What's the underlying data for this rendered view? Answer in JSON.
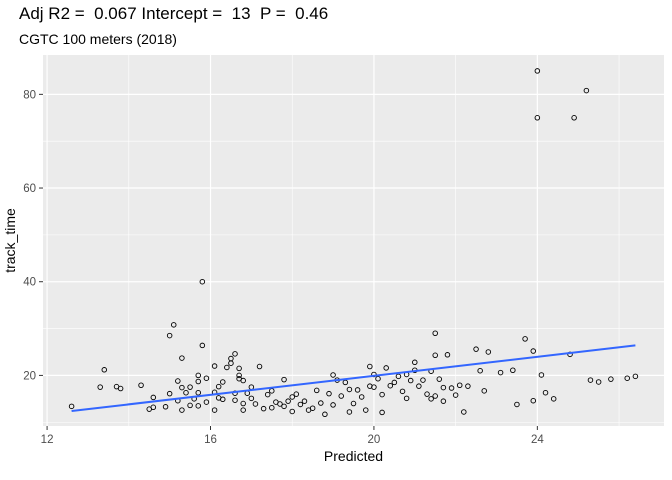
{
  "chart_data": {
    "type": "scatter",
    "title": "Adj R2 =  0.067 Intercept =  13  P =  0.46",
    "subtitle": "CGTC 100 meters (2018)",
    "xlabel": "Predicted",
    "ylabel": "track_time",
    "xlim": [
      11.9,
      27.1
    ],
    "ylim": [
      9.2,
      88.4
    ],
    "x_ticks": [
      12,
      16,
      20,
      24
    ],
    "y_ticks": [
      20,
      40,
      60,
      80
    ],
    "grid": true,
    "background": "#EBEBEB",
    "point_color": "#000000",
    "line_color": "#3366FF",
    "fit_line": {
      "x": [
        12.6,
        26.4
      ],
      "y": [
        12.4,
        26.4
      ]
    },
    "points": [
      [
        12.6,
        13.4
      ],
      [
        13.3,
        17.5
      ],
      [
        13.4,
        21.2
      ],
      [
        13.7,
        17.6
      ],
      [
        13.8,
        17.2
      ],
      [
        14.3,
        17.9
      ],
      [
        14.5,
        12.8
      ],
      [
        14.6,
        13.2
      ],
      [
        14.6,
        15.3
      ],
      [
        14.9,
        13.3
      ],
      [
        15.0,
        16.1
      ],
      [
        15.0,
        28.5
      ],
      [
        15.1,
        30.8
      ],
      [
        15.2,
        18.8
      ],
      [
        15.2,
        14.6
      ],
      [
        15.3,
        17.4
      ],
      [
        15.3,
        12.6
      ],
      [
        15.3,
        23.7
      ],
      [
        15.4,
        16.3
      ],
      [
        15.5,
        13.6
      ],
      [
        15.5,
        17.5
      ],
      [
        15.6,
        15.0
      ],
      [
        15.7,
        18.7
      ],
      [
        15.7,
        20.0
      ],
      [
        15.7,
        13.5
      ],
      [
        15.7,
        16.3
      ],
      [
        15.8,
        40.0
      ],
      [
        15.8,
        26.4
      ],
      [
        15.9,
        19.4
      ],
      [
        15.9,
        14.3
      ],
      [
        16.1,
        16.4
      ],
      [
        16.1,
        12.6
      ],
      [
        16.1,
        22.0
      ],
      [
        16.2,
        15.2
      ],
      [
        16.2,
        17.6
      ],
      [
        16.3,
        18.6
      ],
      [
        16.3,
        14.9
      ],
      [
        16.4,
        21.7
      ],
      [
        16.5,
        22.6
      ],
      [
        16.5,
        23.6
      ],
      [
        16.6,
        16.2
      ],
      [
        16.6,
        14.7
      ],
      [
        16.6,
        24.6
      ],
      [
        16.7,
        21.5
      ],
      [
        16.7,
        20.0
      ],
      [
        16.7,
        19.3
      ],
      [
        16.8,
        18.9
      ],
      [
        16.8,
        14.0
      ],
      [
        16.8,
        12.6
      ],
      [
        16.9,
        16.2
      ],
      [
        17.0,
        17.5
      ],
      [
        17.0,
        15.1
      ],
      [
        17.1,
        13.9
      ],
      [
        17.2,
        21.9
      ],
      [
        17.3,
        12.9
      ],
      [
        17.4,
        15.9
      ],
      [
        17.5,
        16.7
      ],
      [
        17.5,
        13.1
      ],
      [
        17.6,
        14.3
      ],
      [
        17.7,
        13.9
      ],
      [
        17.8,
        19.1
      ],
      [
        17.8,
        13.4
      ],
      [
        17.9,
        14.5
      ],
      [
        18.0,
        15.4
      ],
      [
        18.0,
        12.3
      ],
      [
        18.1,
        16.0
      ],
      [
        18.2,
        13.8
      ],
      [
        18.3,
        14.5
      ],
      [
        18.4,
        12.6
      ],
      [
        18.5,
        13.0
      ],
      [
        18.6,
        16.8
      ],
      [
        18.7,
        14.1
      ],
      [
        18.8,
        11.7
      ],
      [
        18.9,
        16.1
      ],
      [
        19.0,
        13.7
      ],
      [
        19.0,
        20.1
      ],
      [
        19.1,
        19.0
      ],
      [
        19.2,
        15.6
      ],
      [
        19.3,
        18.5
      ],
      [
        19.4,
        17.0
      ],
      [
        19.4,
        12.2
      ],
      [
        19.5,
        14.0
      ],
      [
        19.6,
        16.9
      ],
      [
        19.7,
        15.4
      ],
      [
        19.8,
        12.6
      ],
      [
        19.9,
        21.9
      ],
      [
        19.9,
        17.7
      ],
      [
        20.0,
        20.2
      ],
      [
        20.0,
        17.5
      ],
      [
        20.1,
        19.3
      ],
      [
        20.2,
        15.9
      ],
      [
        20.2,
        12.1
      ],
      [
        20.3,
        21.6
      ],
      [
        20.4,
        17.8
      ],
      [
        20.5,
        18.5
      ],
      [
        20.6,
        19.8
      ],
      [
        20.7,
        16.6
      ],
      [
        20.8,
        15.1
      ],
      [
        20.8,
        20.2
      ],
      [
        20.9,
        18.9
      ],
      [
        21.0,
        21.1
      ],
      [
        21.0,
        22.8
      ],
      [
        21.1,
        17.7
      ],
      [
        21.2,
        19.0
      ],
      [
        21.3,
        16.0
      ],
      [
        21.4,
        15.0
      ],
      [
        21.4,
        20.9
      ],
      [
        21.5,
        29.0
      ],
      [
        21.5,
        24.3
      ],
      [
        21.5,
        15.6
      ],
      [
        21.6,
        19.2
      ],
      [
        21.7,
        14.5
      ],
      [
        21.7,
        17.4
      ],
      [
        21.8,
        24.4
      ],
      [
        21.9,
        17.3
      ],
      [
        22.0,
        15.8
      ],
      [
        22.1,
        17.9
      ],
      [
        22.2,
        12.2
      ],
      [
        22.3,
        17.7
      ],
      [
        22.5,
        25.6
      ],
      [
        22.6,
        21.0
      ],
      [
        22.7,
        16.7
      ],
      [
        22.8,
        25.0
      ],
      [
        23.1,
        20.6
      ],
      [
        23.4,
        21.1
      ],
      [
        23.5,
        13.8
      ],
      [
        23.7,
        27.8
      ],
      [
        23.9,
        25.2
      ],
      [
        23.9,
        14.6
      ],
      [
        24.0,
        85.0
      ],
      [
        24.0,
        75.0
      ],
      [
        24.1,
        20.1
      ],
      [
        24.2,
        16.3
      ],
      [
        24.4,
        15.0
      ],
      [
        24.8,
        24.5
      ],
      [
        24.9,
        75.0
      ],
      [
        25.2,
        80.8
      ],
      [
        25.3,
        19.0
      ],
      [
        25.5,
        18.6
      ],
      [
        25.8,
        19.2
      ],
      [
        26.2,
        19.4
      ],
      [
        26.4,
        19.8
      ]
    ]
  }
}
